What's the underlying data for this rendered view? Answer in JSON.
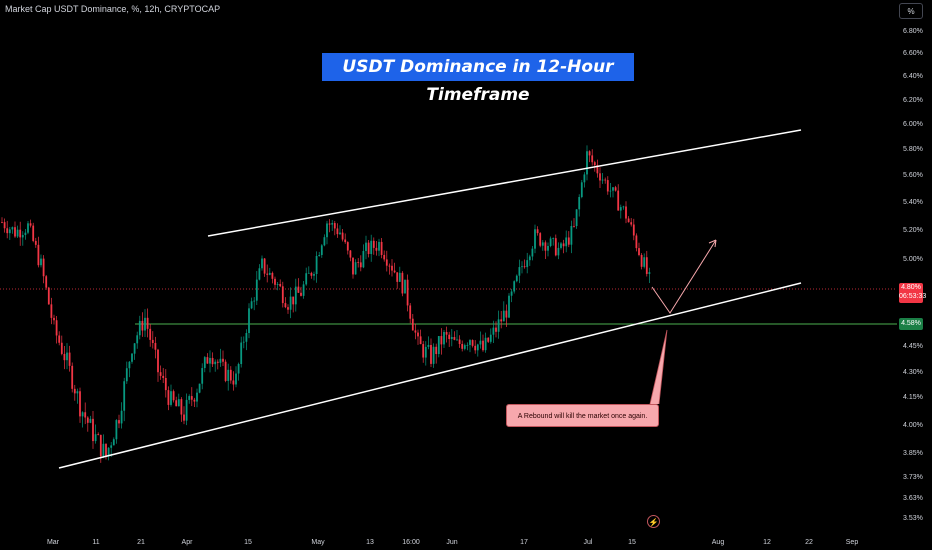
{
  "symbol_title": "Market Cap USDT Dominance, %, 12h, CRYPTOCAP",
  "unit_button": "%",
  "headline": "USDT Dominance in 12-Hour Timeframe",
  "callout_text": "A Rebound will kill the market once again.",
  "current_price": {
    "value": "4.80%",
    "countdown": "06:53:33"
  },
  "level_tag": "4.58%",
  "colors": {
    "up": "#089981",
    "down": "#f23645",
    "accent": "#1e63e9",
    "level": "#4caf50",
    "callout_bg": "#f7a8ad"
  },
  "flash_icon": "lightning-icon",
  "chart_data": {
    "type": "candlestick",
    "title": "USDT Dominance in 12-Hour Timeframe",
    "ylabel": "%",
    "ylim": [
      3.5,
      6.95
    ],
    "y_ticks": [
      "6.80%",
      "6.60%",
      "6.40%",
      "6.20%",
      "6.00%",
      "5.80%",
      "5.60%",
      "5.40%",
      "5.20%",
      "5.00%",
      "4.80%",
      "4.45%",
      "4.30%",
      "4.15%",
      "4.00%",
      "3.85%",
      "3.73%",
      "3.63%",
      "3.53%"
    ],
    "x_ticks": [
      "Mar",
      "11",
      "21",
      "Apr",
      "15",
      "May",
      "13",
      "16:00",
      "Jun",
      "17",
      "Jul",
      "15",
      "Aug",
      "12",
      "22",
      "Sep"
    ],
    "close_path": [
      {
        "x": "Feb 24",
        "y": 5.25
      },
      {
        "x": "Feb 27",
        "y": 5.18
      },
      {
        "x": "Mar 1",
        "y": 5.22
      },
      {
        "x": "Mar 3",
        "y": 4.95
      },
      {
        "x": "Mar 5",
        "y": 4.55
      },
      {
        "x": "Mar 7",
        "y": 4.35
      },
      {
        "x": "Mar 9",
        "y": 4.1
      },
      {
        "x": "Mar 12",
        "y": 3.95
      },
      {
        "x": "Mar 14",
        "y": 3.83
      },
      {
        "x": "Mar 16",
        "y": 4.05
      },
      {
        "x": "Mar 19",
        "y": 4.45
      },
      {
        "x": "Mar 21",
        "y": 4.62
      },
      {
        "x": "Mar 24",
        "y": 4.3
      },
      {
        "x": "Mar 27",
        "y": 4.12
      },
      {
        "x": "Mar 30",
        "y": 4.05
      },
      {
        "x": "Apr 2",
        "y": 4.2
      },
      {
        "x": "Apr 5",
        "y": 4.42
      },
      {
        "x": "Apr 8",
        "y": 4.3
      },
      {
        "x": "Apr 11",
        "y": 4.25
      },
      {
        "x": "Apr 13",
        "y": 4.65
      },
      {
        "x": "Apr 15",
        "y": 4.95
      },
      {
        "x": "Apr 18",
        "y": 4.85
      },
      {
        "x": "Apr 21",
        "y": 4.72
      },
      {
        "x": "Apr 24",
        "y": 4.78
      },
      {
        "x": "Apr 27",
        "y": 4.95
      },
      {
        "x": "Apr 30",
        "y": 5.25
      },
      {
        "x": "May 2",
        "y": 5.18
      },
      {
        "x": "May 4",
        "y": 4.92
      },
      {
        "x": "May 7",
        "y": 5.05
      },
      {
        "x": "May 10",
        "y": 5.1
      },
      {
        "x": "May 13",
        "y": 4.95
      },
      {
        "x": "May 15",
        "y": 4.8
      },
      {
        "x": "May 17",
        "y": 4.45
      },
      {
        "x": "May 20",
        "y": 4.38
      },
      {
        "x": "May 23",
        "y": 4.5
      },
      {
        "x": "May 27",
        "y": 4.45
      },
      {
        "x": "Jun 1",
        "y": 4.5
      },
      {
        "x": "Jun 4",
        "y": 4.42
      },
      {
        "x": "Jun 8",
        "y": 4.55
      },
      {
        "x": "Jun 12",
        "y": 4.7
      },
      {
        "x": "Jun 15",
        "y": 4.95
      },
      {
        "x": "Jun 18",
        "y": 5.15
      },
      {
        "x": "Jun 21",
        "y": 5.1
      },
      {
        "x": "Jun 24",
        "y": 5.05
      },
      {
        "x": "Jun 27",
        "y": 5.2
      },
      {
        "x": "Jul 1",
        "y": 5.75
      },
      {
        "x": "Jul 4",
        "y": 5.6
      },
      {
        "x": "Jul 7",
        "y": 5.45
      },
      {
        "x": "Jul 10",
        "y": 5.3
      },
      {
        "x": "Jul 12",
        "y": 5.05
      },
      {
        "x": "Jul 14",
        "y": 4.8
      }
    ],
    "trendlines": [
      {
        "name": "upper-channel",
        "from": {
          "x": "Mar 25",
          "y": 5.22
        },
        "to": {
          "x": "Aug 25",
          "y": 5.96
        }
      },
      {
        "name": "lower-channel",
        "from": {
          "x": "Mar 5",
          "y": 3.79
        },
        "to": {
          "x": "Aug 25",
          "y": 4.84
        }
      },
      {
        "name": "support-level",
        "from": {
          "x": "Mar 22",
          "y": 4.58
        },
        "to": {
          "x": "Sep 10",
          "y": 4.58
        }
      }
    ],
    "projection": [
      {
        "x": "Jul 14",
        "y": 4.8
      },
      {
        "x": "Jul 20",
        "y": 4.62
      },
      {
        "x": "Jul 29",
        "y": 5.13
      }
    ],
    "current_price": 4.8,
    "level": 4.58
  }
}
